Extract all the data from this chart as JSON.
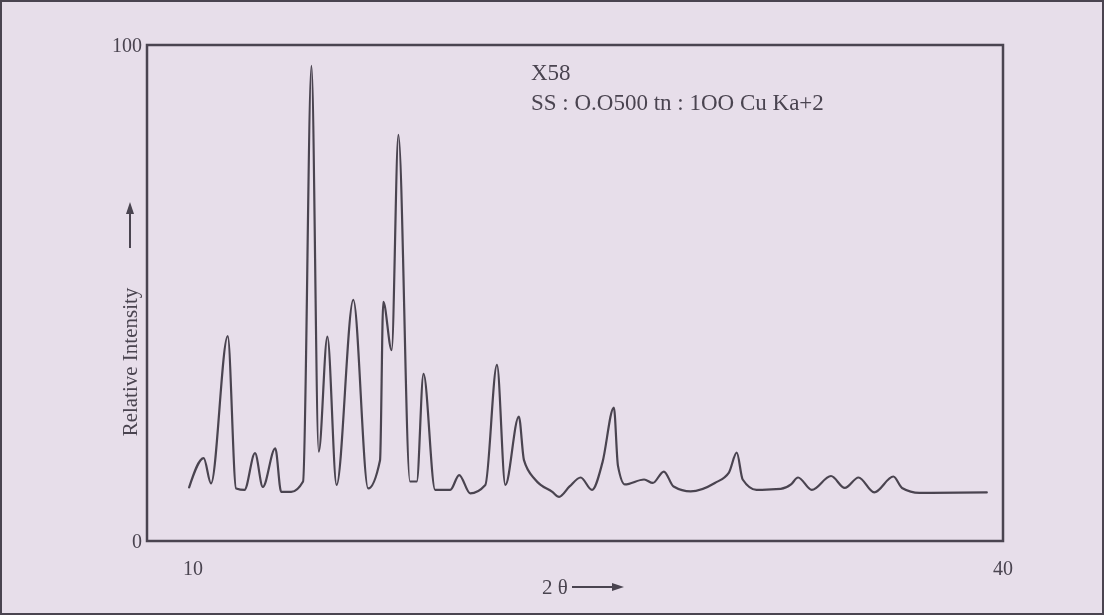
{
  "chart_data": {
    "type": "line",
    "xlabel": "2 θ",
    "ylabel": "Relative Intensity",
    "annotations": [
      "X58",
      "SS : O.O500 tn : 1OO Cu Ka+2"
    ],
    "xlim": [
      8.3,
      40
    ],
    "ylim": [
      0,
      100
    ],
    "xticks": [
      10,
      40
    ],
    "yticks": [
      0,
      100
    ],
    "grid": false,
    "marker": "none",
    "line_style": "solid",
    "series": [
      {
        "color": "#4a4450",
        "x": [
          9.86,
          10.4,
          10.67,
          11.29,
          11.6,
          11.91,
          12.3,
          12.59,
          13.05,
          13.27,
          13.64,
          14.08,
          14.39,
          14.66,
          14.98,
          15.32,
          15.94,
          16.49,
          16.93,
          17.05,
          17.36,
          17.61,
          18.04,
          18.29,
          18.54,
          18.97,
          19.53,
          19.86,
          20.27,
          20.83,
          21.26,
          21.57,
          22.07,
          22.26,
          22.69,
          23.31,
          23.56,
          23.95,
          24.36,
          24.78,
          25.17,
          25.59,
          25.74,
          26.0,
          26.71,
          27.03,
          27.44,
          27.8,
          28.43,
          29.33,
          29.85,
          30.14,
          30.36,
          30.87,
          31.77,
          32.15,
          32.41,
          32.92,
          33.63,
          34.14,
          34.65,
          35.23,
          35.94,
          36.26,
          36.9,
          39.4
        ],
        "values": [
          10.8,
          16.7,
          11.6,
          41.3,
          10.6,
          10.3,
          17.7,
          10.9,
          18.7,
          9.9,
          9.9,
          12.0,
          95.8,
          18.0,
          41.2,
          11.3,
          48.6,
          10.6,
          16.3,
          48.2,
          38.5,
          81.9,
          12.0,
          12.0,
          33.7,
          10.3,
          10.3,
          13.3,
          9.6,
          11.3,
          35.5,
          11.3,
          25.1,
          16.3,
          12.3,
          9.9,
          8.9,
          11.0,
          12.8,
          10.3,
          15.9,
          26.9,
          15.2,
          11.4,
          12.4,
          11.7,
          14.0,
          11.0,
          10.0,
          11.7,
          13.8,
          17.8,
          12.4,
          10.3,
          10.5,
          11.4,
          12.8,
          10.3,
          13.1,
          10.7,
          12.8,
          9.8,
          13.0,
          10.7,
          9.7,
          9.8
        ]
      }
    ]
  }
}
